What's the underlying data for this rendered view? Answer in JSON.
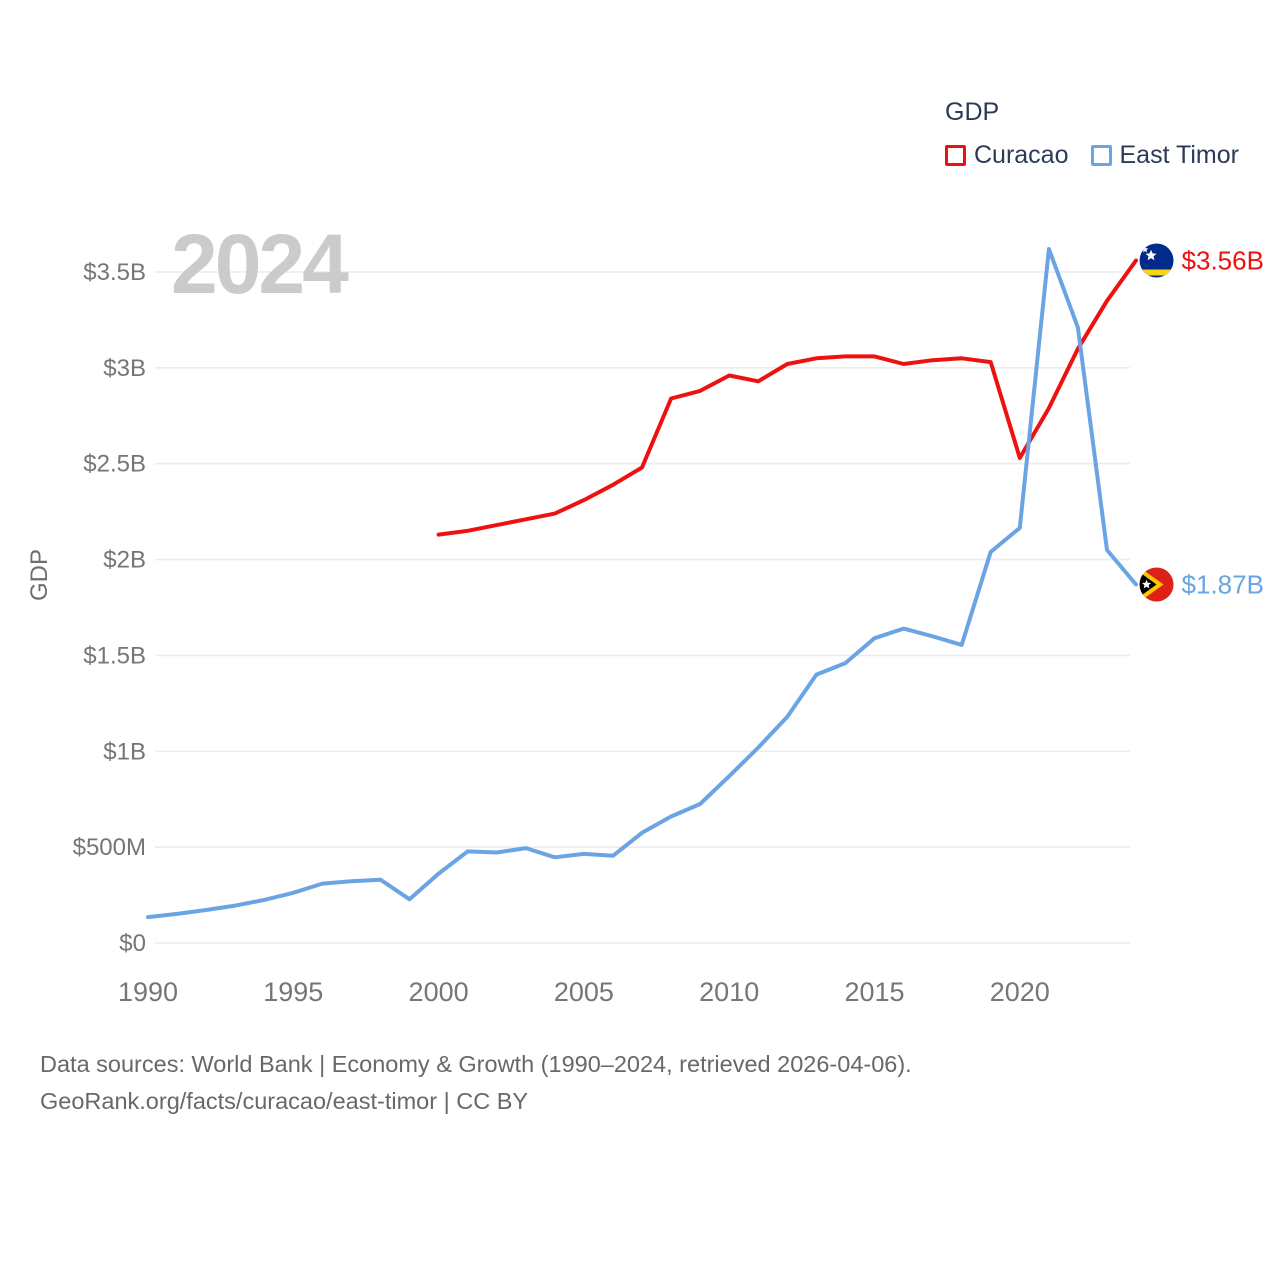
{
  "legend": {
    "title": "GDP",
    "items": [
      {
        "label": "Curacao",
        "color": "#ee1111"
      },
      {
        "label": "East Timor",
        "color": "#6aa4e4"
      }
    ]
  },
  "watermark": "2024",
  "footer": {
    "line1": "Data sources: World Bank | Economy & Growth (1990–2024, retrieved 2026-04-06).",
    "line2": "GeoRank.org/facts/curacao/east-timor | CC BY"
  },
  "chart_data": {
    "type": "line",
    "title": "GDP",
    "ylabel": "GDP",
    "legend_position": "top-right",
    "grid": true,
    "x_axis": {
      "ticks": [
        1990,
        1995,
        2000,
        2005,
        2010,
        2015,
        2020
      ],
      "range": [
        1990,
        2024
      ]
    },
    "y_axis": {
      "ticks_millions": [
        0,
        500,
        1000,
        1500,
        2000,
        2500,
        3000,
        3500
      ],
      "tick_labels": [
        "$0",
        "$500M",
        "$1B",
        "$1.5B",
        "$2B",
        "$2.5B",
        "$3B",
        "$3.5B"
      ],
      "range_millions": [
        0,
        3700
      ]
    },
    "series": [
      {
        "name": "Curacao",
        "color": "#ee1111",
        "flag": "curacao-flag-icon",
        "end_label": "$3.56B",
        "x": [
          2000,
          2001,
          2002,
          2003,
          2004,
          2005,
          2006,
          2007,
          2008,
          2009,
          2010,
          2011,
          2012,
          2013,
          2014,
          2015,
          2016,
          2017,
          2018,
          2019,
          2020,
          2021,
          2022,
          2023,
          2024
        ],
        "values_millions": [
          2130,
          2150,
          2180,
          2210,
          2240,
          2310,
          2390,
          2480,
          2840,
          2880,
          2960,
          2930,
          3020,
          3050,
          3060,
          3060,
          3020,
          3040,
          3050,
          3030,
          2530,
          2790,
          3100,
          3350,
          3560
        ]
      },
      {
        "name": "East Timor",
        "color": "#6aa4e4",
        "flag": "east-timor-flag-icon",
        "end_label": "$1.87B",
        "x": [
          1990,
          1991,
          1992,
          1993,
          1994,
          1995,
          1996,
          1997,
          1998,
          1999,
          2000,
          2001,
          2002,
          2003,
          2004,
          2005,
          2006,
          2007,
          2008,
          2009,
          2010,
          2011,
          2012,
          2013,
          2014,
          2015,
          2016,
          2017,
          2018,
          2019,
          2020,
          2021,
          2022,
          2023,
          2024
        ],
        "values_millions": [
          135,
          152,
          172,
          195,
          225,
          262,
          310,
          322,
          330,
          228,
          362,
          478,
          472,
          495,
          447,
          465,
          455,
          575,
          660,
          725,
          870,
          1020,
          1180,
          1400,
          1460,
          1590,
          1640,
          1600,
          1555,
          2040,
          2165,
          3620,
          3210,
          2050,
          1870
        ]
      }
    ]
  }
}
